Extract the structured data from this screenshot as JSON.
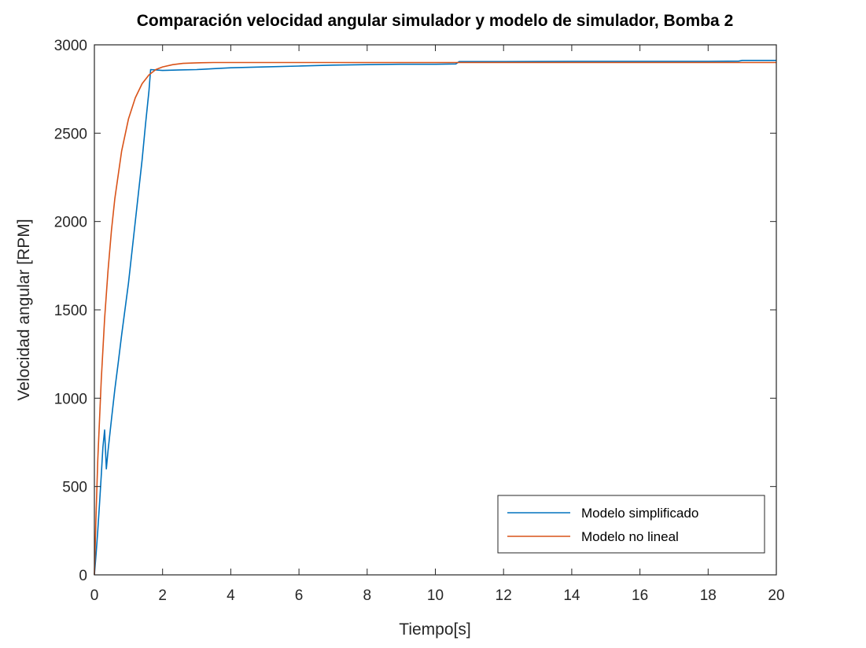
{
  "chart_data": {
    "type": "line",
    "title": "Comparación velocidad angular simulador y modelo de simulador, Bomba 2",
    "xlabel": "Tiempo[s]",
    "ylabel": "Velocidad angular [RPM]",
    "xlim": [
      0,
      20
    ],
    "ylim": [
      0,
      3000
    ],
    "x_ticks": [
      0,
      2,
      4,
      6,
      8,
      10,
      12,
      14,
      16,
      18,
      20
    ],
    "y_ticks": [
      0,
      500,
      1000,
      1500,
      2000,
      2500,
      3000
    ],
    "grid": false,
    "legend_location": "bottom-right",
    "series": [
      {
        "name": "Modelo simplificado",
        "color": "#0072BD",
        "x": [
          0,
          0.05,
          0.1,
          0.15,
          0.2,
          0.25,
          0.3,
          0.35,
          0.4,
          0.5,
          0.6,
          0.7,
          0.8,
          1.0,
          1.2,
          1.4,
          1.5,
          1.6,
          1.65,
          2.0,
          2.5,
          3.0,
          3.5,
          4.0,
          5.0,
          6.0,
          7.0,
          8.0,
          9.0,
          10.0,
          10.6,
          10.7,
          12.0,
          14.0,
          16.0,
          18.0,
          18.9,
          19.0,
          20.0
        ],
        "y": [
          0,
          120,
          250,
          400,
          560,
          720,
          820,
          600,
          700,
          880,
          1050,
          1200,
          1360,
          1650,
          2000,
          2350,
          2550,
          2740,
          2860,
          2855,
          2858,
          2860,
          2865,
          2870,
          2875,
          2880,
          2885,
          2888,
          2890,
          2890,
          2892,
          2905,
          2905,
          2906,
          2906,
          2906,
          2908,
          2912,
          2912
        ]
      },
      {
        "name": "Modelo no lineal",
        "color": "#D95319",
        "x": [
          0,
          0.05,
          0.1,
          0.2,
          0.3,
          0.4,
          0.5,
          0.6,
          0.8,
          1.0,
          1.2,
          1.4,
          1.6,
          1.8,
          2.0,
          2.3,
          2.6,
          3.0,
          3.5,
          4.0,
          5.0,
          6.0,
          8.0,
          10.0,
          12.0,
          14.0,
          16.0,
          18.0,
          20.0
        ],
        "y": [
          0,
          350,
          650,
          1100,
          1450,
          1720,
          1950,
          2130,
          2400,
          2580,
          2700,
          2780,
          2830,
          2860,
          2875,
          2888,
          2895,
          2898,
          2900,
          2900,
          2900,
          2900,
          2900,
          2900,
          2900,
          2900,
          2900,
          2900,
          2900
        ]
      }
    ]
  }
}
